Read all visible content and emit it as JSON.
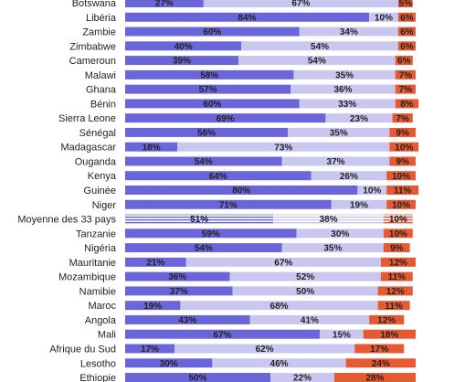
{
  "chart_data": {
    "type": "bar",
    "orientation": "horizontal",
    "stacked": true,
    "value_unit": "%",
    "categories": [
      "Botswana",
      "Libéria",
      "Zambie",
      "Zimbabwe",
      "Cameroun",
      "Malawi",
      "Ghana",
      "Bénin",
      "Sierra Leone",
      "Sénégal",
      "Madagascar",
      "Ouganda",
      "Kenya",
      "Guinée",
      "Niger",
      "Moyenne des 33 pays",
      "Tanzanie",
      "Nigéria",
      "Mauritanie",
      "Mozambique",
      "Namibie",
      "Maroc",
      "Angola",
      "Mali",
      "Afrique du Sud",
      "Lesotho",
      "Ethiopie"
    ],
    "series": [
      {
        "color": "#6a66d9",
        "values": [
          27,
          84,
          60,
          40,
          39,
          58,
          57,
          60,
          69,
          56,
          18,
          54,
          64,
          80,
          71,
          51,
          59,
          54,
          21,
          36,
          37,
          19,
          43,
          67,
          17,
          30,
          50
        ]
      },
      {
        "color": "#c9c7f0",
        "values": [
          67,
          10,
          34,
          54,
          54,
          35,
          36,
          33,
          23,
          35,
          73,
          37,
          26,
          10,
          19,
          38,
          30,
          35,
          67,
          52,
          50,
          68,
          41,
          15,
          62,
          46,
          22
        ]
      },
      {
        "color": "#e55a32",
        "values": [
          5,
          6,
          6,
          6,
          6,
          7,
          7,
          8,
          7,
          9,
          10,
          9,
          10,
          11,
          10,
          10,
          10,
          9,
          12,
          11,
          12,
          11,
          12,
          18,
          17,
          24,
          28
        ]
      }
    ],
    "highlight_category": "Moyenne des 33 pays",
    "xlim": [
      0,
      100
    ],
    "grid": false,
    "legend": "none"
  }
}
